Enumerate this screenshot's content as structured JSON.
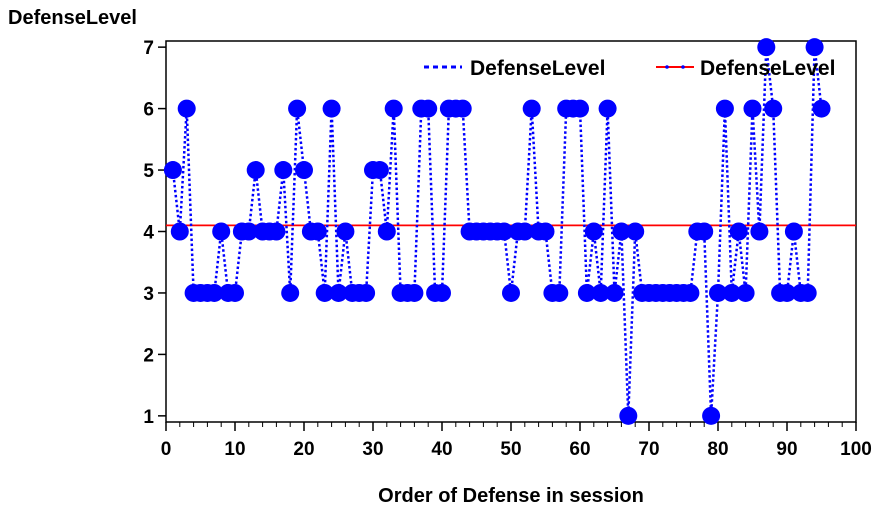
{
  "chart_data": {
    "type": "line",
    "title": "",
    "ylabel": "DefenseLevel",
    "xlabel": "Order of Defense in session",
    "xlim": [
      0,
      100
    ],
    "ylim": [
      0.9,
      7.1
    ],
    "xticks": [
      0,
      10,
      20,
      30,
      40,
      50,
      60,
      70,
      80,
      90,
      100
    ],
    "yticks": [
      1,
      2,
      3,
      4,
      5,
      6,
      7
    ],
    "grid": false,
    "legend_position": "top-right",
    "series": [
      {
        "name": "DefenseLevel",
        "style": "dotted-line-with-markers",
        "color": "#0000ff",
        "x": [
          1,
          2,
          3,
          4,
          5,
          6,
          7,
          8,
          9,
          10,
          11,
          12,
          13,
          14,
          15,
          16,
          17,
          18,
          19,
          20,
          21,
          22,
          23,
          24,
          25,
          26,
          27,
          28,
          29,
          30,
          31,
          32,
          33,
          34,
          35,
          36,
          37,
          38,
          39,
          40,
          41,
          42,
          43,
          44,
          45,
          46,
          47,
          48,
          49,
          50,
          51,
          52,
          53,
          54,
          55,
          56,
          57,
          58,
          59,
          60,
          61,
          62,
          63,
          64,
          65,
          66,
          67,
          68,
          69,
          70,
          71,
          72,
          73,
          74,
          75,
          76,
          77,
          78,
          79,
          80,
          81,
          82,
          83,
          84,
          85,
          86,
          87,
          88,
          89,
          90,
          91,
          92,
          93,
          94,
          95
        ],
        "y": [
          5,
          4,
          6,
          3,
          3,
          3,
          3,
          4,
          3,
          3,
          4,
          4,
          5,
          4,
          4,
          4,
          5,
          3,
          6,
          5,
          4,
          4,
          3,
          6,
          3,
          4,
          3,
          3,
          3,
          5,
          5,
          4,
          6,
          3,
          3,
          3,
          6,
          6,
          3,
          3,
          6,
          6,
          6,
          4,
          4,
          4,
          4,
          4,
          4,
          3,
          4,
          4,
          6,
          4,
          4,
          3,
          3,
          6,
          6,
          6,
          3,
          4,
          3,
          6,
          3,
          4,
          1,
          4,
          3,
          3,
          3,
          3,
          3,
          3,
          3,
          3,
          4,
          4,
          1,
          3,
          6,
          3,
          4,
          3,
          6,
          4,
          7,
          6,
          3,
          3,
          4,
          3,
          3,
          7,
          6
        ]
      },
      {
        "name": "DefenseLevel",
        "style": "solid-line",
        "color": "#ff0000",
        "x": [
          0,
          100
        ],
        "y": [
          4.1,
          4.1
        ]
      }
    ]
  },
  "colors": {
    "series_blue": "#0000ff",
    "mean_red": "#ff0000",
    "axis": "#000000"
  }
}
